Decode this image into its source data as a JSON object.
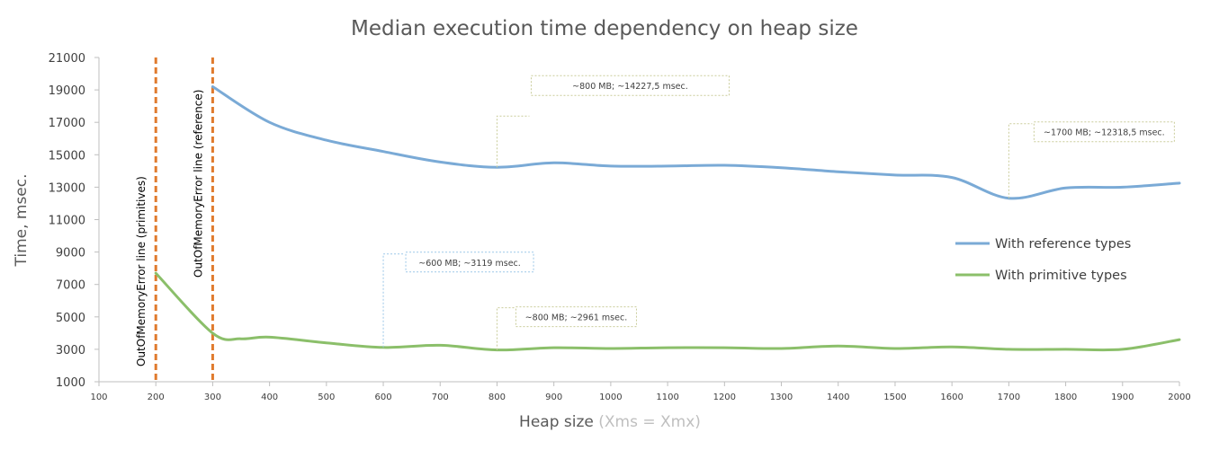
{
  "chart_data": {
    "type": "line",
    "title": "Median execution time dependency on heap size",
    "ylabel": "Time, msec.",
    "xlabel_main": "Heap size",
    "xlabel_sub": " (Xms = Xmx)",
    "xlim": [
      100,
      2000
    ],
    "ylim": [
      1000,
      21000
    ],
    "x_ticks": [
      100,
      200,
      300,
      400,
      500,
      600,
      700,
      800,
      900,
      1000,
      1100,
      1200,
      1300,
      1400,
      1500,
      1600,
      1700,
      1800,
      1900,
      2000
    ],
    "y_ticks": [
      1000,
      3000,
      5000,
      7000,
      9000,
      11000,
      13000,
      15000,
      17000,
      19000,
      21000
    ],
    "grid": false,
    "legend_position": "right",
    "series": [
      {
        "name": "With reference types",
        "color": "#7aaad6",
        "x": [
          300,
          400,
          500,
          600,
          700,
          800,
          900,
          1000,
          1100,
          1200,
          1300,
          1400,
          1500,
          1600,
          1700,
          1800,
          1900,
          2000
        ],
        "values": [
          19200,
          17000,
          15900,
          15200,
          14550,
          14227.5,
          14500,
          14300,
          14300,
          14350,
          14200,
          13950,
          13750,
          13600,
          12318.5,
          12950,
          13000,
          13250
        ]
      },
      {
        "name": "With primitive types",
        "color": "#8bbf6a",
        "x": [
          200,
          300,
          350,
          400,
          500,
          600,
          700,
          800,
          900,
          1000,
          1100,
          1200,
          1300,
          1400,
          1500,
          1600,
          1700,
          1800,
          1900,
          2000
        ],
        "values": [
          7700,
          4000,
          3650,
          3750,
          3400,
          3119,
          3250,
          2961,
          3100,
          3050,
          3100,
          3100,
          3050,
          3200,
          3050,
          3150,
          3000,
          3000,
          3000,
          3600
        ]
      }
    ],
    "vertical_lines": [
      {
        "x": 200,
        "label": "OutOfMemoryError  line  (primitives)",
        "color": "#e07b2e"
      },
      {
        "x": 300,
        "label": "OutOfMemoryError  line  (reference)",
        "color": "#e07b2e"
      }
    ],
    "annotations": [
      {
        "text": "~800 MB; ~14227,5 msec.",
        "x": 800,
        "y": 14227.5,
        "border": "#c9cc99"
      },
      {
        "text": "~1700 MB; ~12318,5 msec.",
        "x": 1700,
        "y": 12318.5,
        "border": "#c9cc99"
      },
      {
        "text": "~600 MB; ~3119 msec.",
        "x": 600,
        "y": 3119,
        "border": "#9cc7e8"
      },
      {
        "text": "~800 MB; ~2961 msec.",
        "x": 800,
        "y": 2961,
        "border": "#c9cc99"
      }
    ]
  }
}
